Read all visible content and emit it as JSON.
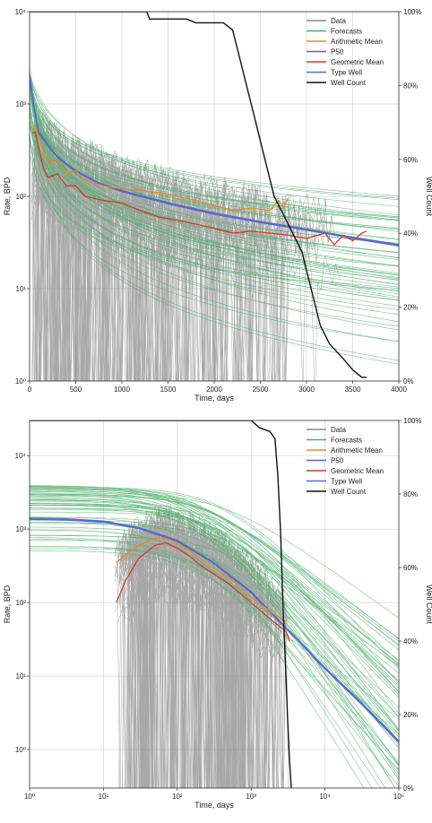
{
  "colors": {
    "data": "#8a8a8a",
    "forecasts": "#4caf6a",
    "arithmetic_mean": "#e8862a",
    "p50": "#6a5fb0",
    "geometric_mean": "#d63a2a",
    "type_well": "#4a6fd8",
    "well_count": "#111111",
    "grid": "#d9d9d9"
  },
  "chart_data": [
    {
      "type": "line",
      "xlabel": "Time, days",
      "ylabel": "Rate, BPD",
      "y2label": "Well Count",
      "xscale": "linear",
      "yscale": "log",
      "xlim": [
        0,
        4000
      ],
      "ylim": [
        1,
        10000
      ],
      "y2lim": [
        0,
        100
      ],
      "grid": true,
      "legend_position": "top-right",
      "x_ticks": [
        "0",
        "500",
        "1000",
        "1500",
        "2000",
        "2500",
        "3000",
        "3500",
        "4000"
      ],
      "y_ticks": [
        "10⁰",
        "10¹",
        "10²",
        "10³",
        "10⁴"
      ],
      "y2_ticks": [
        "0%",
        "20%",
        "40%",
        "60%",
        "80%",
        "100%"
      ],
      "legend": [
        "Data",
        "Forecasts",
        "Arithmetic Mean",
        "P50",
        "Geometric Mean",
        "Type Well",
        "Well Count"
      ],
      "series": [
        {
          "name": "Type Well",
          "x": [
            0,
            50,
            100,
            200,
            300,
            500,
            750,
            1000,
            1500,
            2000,
            2500,
            3000,
            3500,
            4000
          ],
          "y": [
            2000,
            900,
            500,
            360,
            270,
            190,
            140,
            115,
            85,
            66,
            53,
            44,
            36,
            30
          ]
        },
        {
          "name": "P50",
          "x": [
            0,
            50,
            100,
            200,
            300,
            500,
            750,
            1000,
            1500,
            2000,
            2500,
            3000,
            3500,
            4000
          ],
          "y": [
            1800,
            850,
            480,
            350,
            265,
            185,
            137,
            112,
            83,
            64,
            52,
            43,
            35,
            29
          ]
        },
        {
          "name": "Arithmetic Mean",
          "x": [
            30,
            60,
            100,
            150,
            200,
            300,
            400,
            500,
            600,
            700,
            800,
            1000,
            1200,
            1400,
            1600,
            1800,
            2000,
            2200,
            2400,
            2600,
            2700,
            2750,
            2800
          ],
          "y": [
            520,
            600,
            420,
            300,
            240,
            250,
            180,
            190,
            150,
            140,
            130,
            120,
            115,
            110,
            100,
            90,
            80,
            70,
            75,
            70,
            90,
            75,
            95
          ]
        },
        {
          "name": "Geometric Mean",
          "x": [
            30,
            60,
            100,
            150,
            200,
            300,
            400,
            500,
            600,
            700,
            800,
            1000,
            1200,
            1400,
            1600,
            1800,
            2000,
            2200,
            2400,
            2600,
            2800,
            3000,
            3200,
            3300,
            3400,
            3500,
            3600,
            3650
          ],
          "y": [
            480,
            500,
            330,
            200,
            160,
            175,
            130,
            130,
            100,
            95,
            90,
            85,
            70,
            60,
            55,
            50,
            45,
            40,
            42,
            40,
            38,
            35,
            40,
            30,
            38,
            33,
            40,
            42
          ]
        },
        {
          "name": "Well Count",
          "x": [
            0,
            1270,
            1300,
            1700,
            1800,
            2100,
            2200,
            2250,
            2350,
            2450,
            2550,
            2650,
            2750,
            2850,
            2950,
            3050,
            3150,
            3250,
            3400,
            3500,
            3600,
            3650
          ],
          "y2": [
            100,
            100,
            98,
            98,
            97,
            97,
            95,
            90,
            80,
            70,
            60,
            50,
            45,
            40,
            35,
            25,
            15,
            10,
            6,
            3,
            1,
            1
          ]
        }
      ]
    },
    {
      "type": "line",
      "xlabel": "Time, days",
      "ylabel": "Rate, BPD",
      "y2label": "Well Count",
      "xscale": "log",
      "yscale": "log",
      "xlim": [
        1,
        100000
      ],
      "ylim": [
        0.3,
        30000
      ],
      "y2lim": [
        0,
        100
      ],
      "grid": true,
      "legend_position": "top-right",
      "x_ticks": [
        "10⁰",
        "10¹",
        "10²",
        "10³",
        "10⁴",
        "10⁵"
      ],
      "y_ticks": [
        "10⁰",
        "10¹",
        "10²",
        "10³",
        "10⁴"
      ],
      "y2_ticks": [
        "0%",
        "20%",
        "40%",
        "60%",
        "80%",
        "100%"
      ],
      "legend": [
        "Data",
        "Forecasts",
        "Arithmetic Mean",
        "P50",
        "Geometric Mean",
        "Type Well",
        "Well Count"
      ],
      "series": [
        {
          "name": "Type Well",
          "x": [
            1,
            3,
            10,
            30,
            100,
            300,
            1000,
            3000,
            10000,
            30000,
            100000
          ],
          "y": [
            1400,
            1380,
            1280,
            1050,
            700,
            360,
            140,
            45,
            13,
            4.5,
            1.3
          ]
        },
        {
          "name": "P50",
          "x": [
            1,
            3,
            10,
            30,
            100,
            300,
            1000,
            3000,
            10000,
            30000,
            100000
          ],
          "y": [
            1350,
            1330,
            1240,
            1020,
            680,
            350,
            135,
            44,
            12.5,
            4.3,
            1.25
          ]
        },
        {
          "name": "Arithmetic Mean",
          "x": [
            15,
            20,
            30,
            50,
            70,
            100,
            150,
            200,
            300,
            500,
            1000,
            2000,
            3000
          ],
          "y": [
            350,
            450,
            600,
            750,
            750,
            650,
            500,
            400,
            300,
            220,
            120,
            70,
            55
          ]
        },
        {
          "name": "Geometric Mean",
          "x": [
            15,
            20,
            30,
            50,
            70,
            100,
            150,
            200,
            300,
            500,
            1000,
            2000,
            3000,
            3300
          ],
          "y": [
            100,
            200,
            400,
            600,
            650,
            550,
            420,
            330,
            250,
            180,
            100,
            55,
            40,
            30
          ]
        },
        {
          "name": "Well Count",
          "x": [
            1,
            1000,
            1300,
            1800,
            2100,
            2300,
            2500,
            2700,
            2900,
            3100,
            3300,
            3500
          ],
          "y2": [
            100,
            100,
            98,
            97,
            95,
            85,
            70,
            50,
            35,
            20,
            8,
            0
          ]
        }
      ]
    }
  ]
}
